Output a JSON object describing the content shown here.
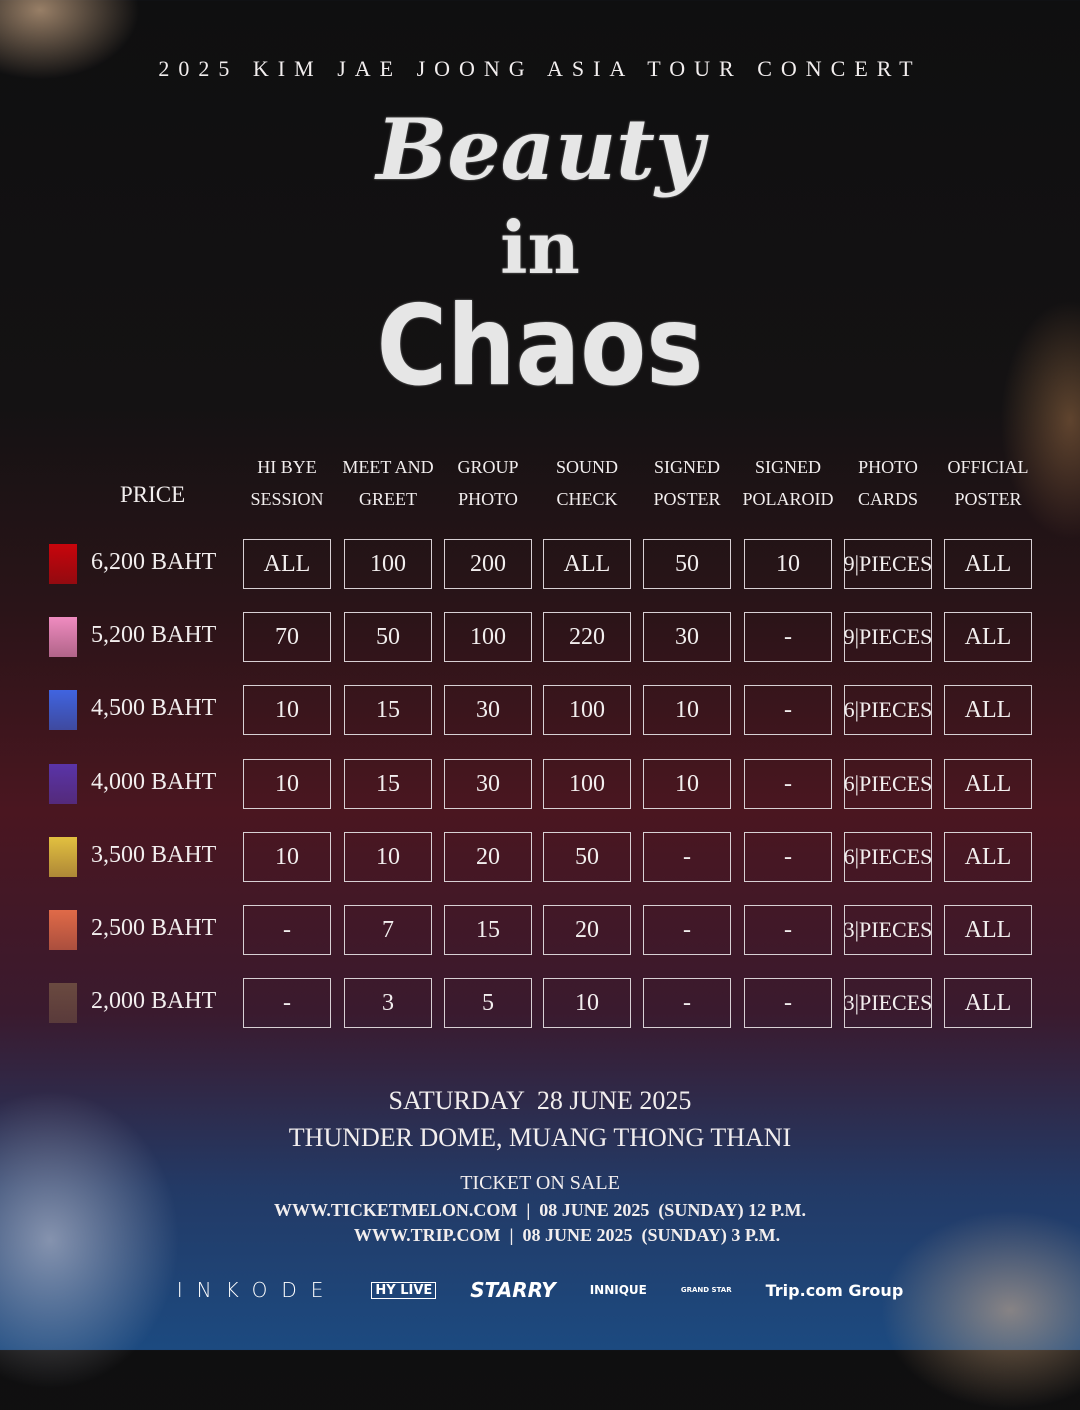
{
  "tour_title": "2025 KIM JAE JOONG ASIA TOUR CONCERT",
  "logo_title": {
    "line1": "Beauty",
    "line2": "in",
    "line3": "Chaos"
  },
  "table": {
    "price_header": "PRICE",
    "columns": [
      [
        "HI BYE",
        "SESSION"
      ],
      [
        "MEET AND",
        "GREET"
      ],
      [
        "GROUP",
        "PHOTO"
      ],
      [
        "SOUND",
        "CHECK"
      ],
      [
        "SIGNED",
        "POSTER"
      ],
      [
        "SIGNED",
        "POLAROID"
      ],
      [
        "PHOTO",
        "CARDS"
      ],
      [
        "OFFICIAL",
        "POSTER"
      ]
    ],
    "rows": [
      {
        "price": "6,200 BAHT",
        "color": "#c8050c",
        "values": [
          "ALL",
          "100",
          "200",
          "ALL",
          "50",
          "10",
          "9|PIECES",
          "ALL"
        ]
      },
      {
        "price": "5,200 BAHT",
        "color": "#f08cc0",
        "values": [
          "70",
          "50",
          "100",
          "220",
          "30",
          "-",
          "9|PIECES",
          "ALL"
        ]
      },
      {
        "price": "4,500 BAHT",
        "color": "#4064e0",
        "values": [
          "10",
          "15",
          "30",
          "100",
          "10",
          "-",
          "6|PIECES",
          "ALL"
        ]
      },
      {
        "price": "4,000 BAHT",
        "color": "#5a34a8",
        "values": [
          "10",
          "15",
          "30",
          "100",
          "10",
          "-",
          "6|PIECES",
          "ALL"
        ]
      },
      {
        "price": "3,500 BAHT",
        "color": "#e2c040",
        "values": [
          "10",
          "10",
          "20",
          "50",
          "-",
          "-",
          "6|PIECES",
          "ALL"
        ]
      },
      {
        "price": "2,500 BAHT",
        "color": "#e06a48",
        "values": [
          "-",
          "7",
          "15",
          "20",
          "-",
          "-",
          "3|PIECES",
          "ALL"
        ]
      },
      {
        "price": "2,000 BAHT",
        "color": "#6a4a40",
        "values": [
          "-",
          "3",
          "5",
          "10",
          "-",
          "-",
          "3|PIECES",
          "ALL"
        ]
      }
    ]
  },
  "event": {
    "date": "SATURDAY  28 JUNE 2025",
    "venue": "THUNDER DOME, MUANG THONG THANI"
  },
  "sale": {
    "heading": "TICKET ON SALE",
    "line1": "WWW.TICKETMELON.COM  |  08 JUNE 2025  (SUNDAY) 12 P.M.",
    "line2": "WWW.TRIP.COM  |  08 JUNE 2025  (SUNDAY) 3 P.M."
  },
  "sponsors": [
    "INKODE",
    "HY LIVE",
    "STARRY",
    "INNIQUE",
    "GRAND STAR",
    "Trip.com Group"
  ]
}
